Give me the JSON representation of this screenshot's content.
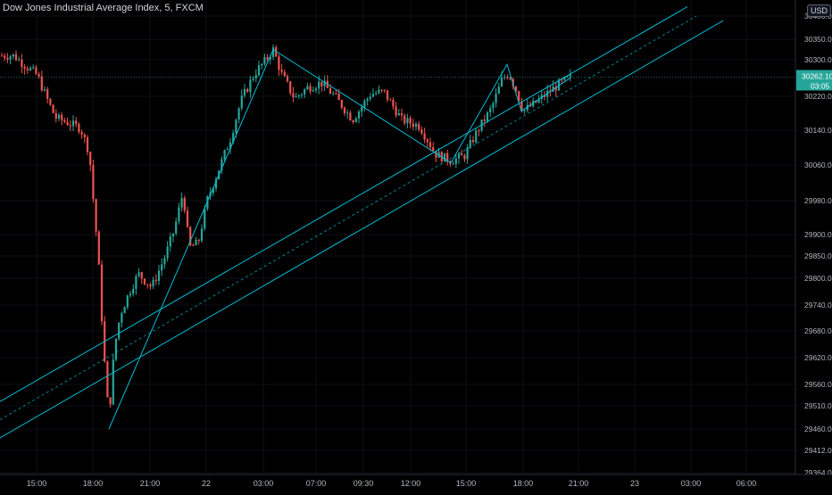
{
  "chart_data": {
    "type": "candlestick",
    "title": "Dow Jones Industrial Average Index, 5, FXCM",
    "currency": "USD",
    "y_ticks": [
      30400,
      30350,
      30300,
      30220,
      30140,
      30060,
      29980,
      29900,
      29850,
      29800,
      29740,
      29680,
      29620,
      29560,
      29510,
      29460,
      29412,
      29364
    ],
    "y_tick_labels": [
      "30400.00",
      "30350.00",
      "30300.00",
      "30220.00",
      "30140.00",
      "30060.00",
      "29980.00",
      "29900.00",
      "29850.00",
      "29800.00",
      "29740.00",
      "29680.00",
      "29620.00",
      "29560.00",
      "29510.00",
      "29460.00",
      "29412.00",
      "29364.00"
    ],
    "x_ticks": [
      "15:00",
      "18:00",
      "21:00",
      "22",
      "03:00",
      "07:00",
      "09:30",
      "12:00",
      "15:00",
      "18:00",
      "21:00",
      "23",
      "03:00",
      "06:00"
    ],
    "last_price_label": "30262.10",
    "countdown_label": "03:05",
    "up_color": "#26a69a",
    "down_color": "#ef5350",
    "drawing_color": "#00bcd4",
    "path_points": [
      [
        15,
        30310
      ],
      [
        42,
        30265
      ],
      [
        62,
        30170
      ],
      [
        90,
        30145
      ],
      [
        100,
        30090
      ],
      [
        110,
        29850
      ],
      [
        116,
        29640
      ],
      [
        122,
        29480
      ],
      [
        128,
        29640
      ],
      [
        135,
        29720
      ],
      [
        145,
        29770
      ],
      [
        155,
        29810
      ],
      [
        170,
        29780
      ],
      [
        185,
        29850
      ],
      [
        195,
        29910
      ],
      [
        205,
        30000
      ],
      [
        212,
        29870
      ],
      [
        222,
        29880
      ],
      [
        232,
        29980
      ],
      [
        245,
        30050
      ],
      [
        258,
        30120
      ],
      [
        270,
        30210
      ],
      [
        285,
        30270
      ],
      [
        298,
        30300
      ],
      [
        306,
        30325
      ],
      [
        315,
        30270
      ],
      [
        330,
        30215
      ],
      [
        345,
        30240
      ],
      [
        360,
        30250
      ],
      [
        375,
        30220
      ],
      [
        395,
        30165
      ],
      [
        415,
        30225
      ],
      [
        430,
        30230
      ],
      [
        450,
        30165
      ],
      [
        470,
        30150
      ],
      [
        488,
        30085
      ],
      [
        505,
        30070
      ],
      [
        520,
        30080
      ],
      [
        535,
        30140
      ],
      [
        550,
        30190
      ],
      [
        563,
        30260
      ],
      [
        570,
        30270
      ],
      [
        578,
        30235
      ],
      [
        586,
        30185
      ],
      [
        600,
        30205
      ],
      [
        615,
        30230
      ],
      [
        625,
        30245
      ],
      [
        640,
        30262
      ]
    ],
    "trend_lines": [
      {
        "x1": 0,
        "y1": 29520,
        "x2": 770,
        "y2": 30420,
        "style": "solid"
      },
      {
        "x1": 0,
        "y1": 29480,
        "x2": 780,
        "y2": 30400,
        "style": "dashed"
      },
      {
        "x1": 0,
        "y1": 29440,
        "x2": 810,
        "y2": 30390,
        "style": "solid"
      }
    ],
    "pattern_lines": [
      [
        [
          122,
          29460
        ],
        [
          306,
          30325
        ],
        [
          505,
          30065
        ],
        [
          568,
          30290
        ],
        [
          584,
          30185
        ],
        [
          640,
          30262
        ]
      ]
    ]
  }
}
